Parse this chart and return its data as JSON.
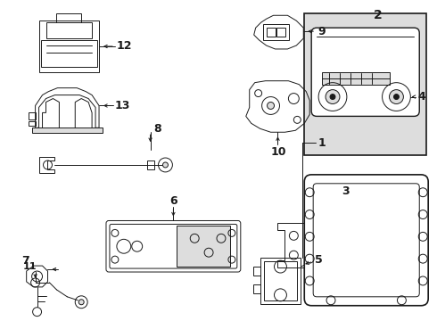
{
  "bg_color": "#ffffff",
  "line_color": "#1a1a1a",
  "gray_color": "#aaaaaa",
  "light_gray": "#dddddd",
  "figsize": [
    4.9,
    3.6
  ],
  "dpi": 100
}
